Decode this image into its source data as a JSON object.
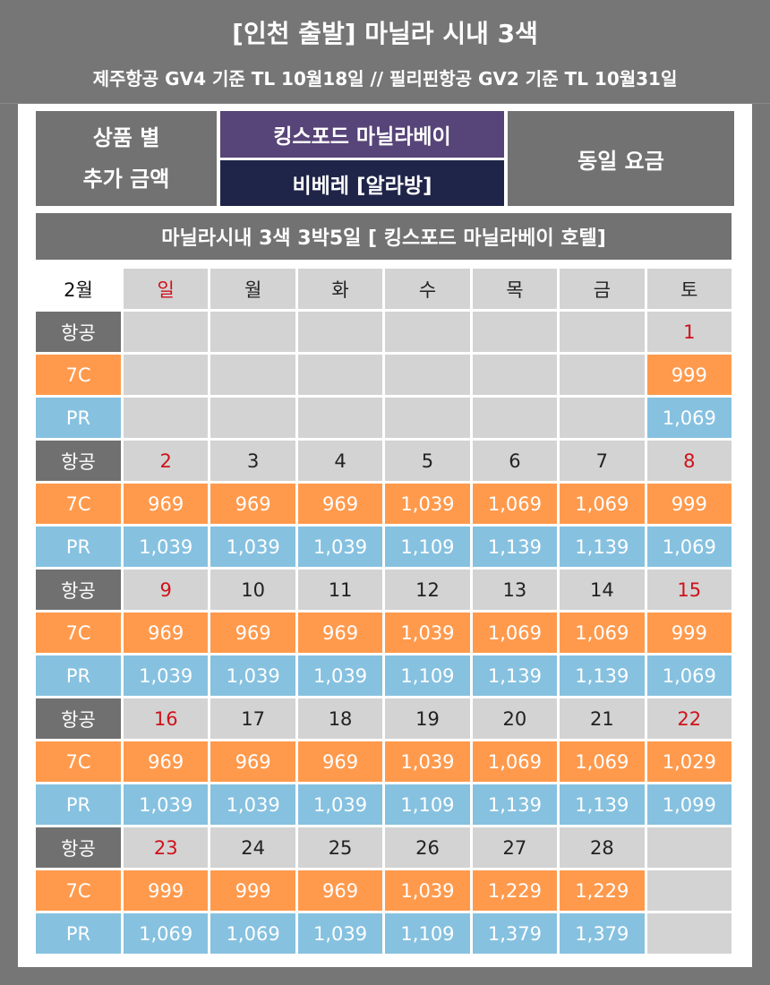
{
  "header": {
    "title": "[인천 출발] 마닐라 시내 3색",
    "subtitle": "제주항공 GV4 기준 TL 10월18일 // 필리핀항공 GV2 기준 TL 10월31일"
  },
  "info": {
    "left_line1": "상품 별",
    "left_line2": "추가 금액",
    "hotel1": "킹스포드 마닐라베이",
    "hotel2": "비베레 [알라방]",
    "right": "동일 요금"
  },
  "product_title": "마닐라시내 3색 3박5일 [ 킹스포드 마닐라베이 호텔]",
  "colors": {
    "orange": "#ff9a4d",
    "blue": "#86c1e0",
    "gray": "#727272",
    "purple": "#574478",
    "navy": "#1f2548",
    "holiday_red": "#d0121b"
  },
  "calendar": {
    "month": "2월",
    "weekdays": [
      "일",
      "월",
      "화",
      "수",
      "목",
      "금",
      "토"
    ],
    "row_labels": {
      "air": "항공",
      "c7": "7C",
      "pr": "PR"
    },
    "weeks": [
      {
        "days": [
          "",
          "",
          "",
          "",
          "",
          "",
          "1"
        ],
        "c7": [
          "",
          "",
          "",
          "",
          "",
          "",
          "999"
        ],
        "pr": [
          "",
          "",
          "",
          "",
          "",
          "",
          "1,069"
        ]
      },
      {
        "days": [
          "2",
          "3",
          "4",
          "5",
          "6",
          "7",
          "8"
        ],
        "c7": [
          "969",
          "969",
          "969",
          "1,039",
          "1,069",
          "1,069",
          "999"
        ],
        "pr": [
          "1,039",
          "1,039",
          "1,039",
          "1,109",
          "1,139",
          "1,139",
          "1,069"
        ]
      },
      {
        "days": [
          "9",
          "10",
          "11",
          "12",
          "13",
          "14",
          "15"
        ],
        "c7": [
          "969",
          "969",
          "969",
          "1,039",
          "1,069",
          "1,069",
          "999"
        ],
        "pr": [
          "1,039",
          "1,039",
          "1,039",
          "1,109",
          "1,139",
          "1,139",
          "1,069"
        ]
      },
      {
        "days": [
          "16",
          "17",
          "18",
          "19",
          "20",
          "21",
          "22"
        ],
        "c7": [
          "969",
          "969",
          "969",
          "1,039",
          "1,069",
          "1,069",
          "1,029"
        ],
        "pr": [
          "1,039",
          "1,039",
          "1,039",
          "1,109",
          "1,139",
          "1,139",
          "1,099"
        ]
      },
      {
        "days": [
          "23",
          "24",
          "25",
          "26",
          "27",
          "28",
          ""
        ],
        "c7": [
          "999",
          "999",
          "969",
          "1,039",
          "1,229",
          "1,229",
          ""
        ],
        "pr": [
          "1,069",
          "1,069",
          "1,039",
          "1,109",
          "1,379",
          "1,379",
          ""
        ]
      }
    ]
  }
}
